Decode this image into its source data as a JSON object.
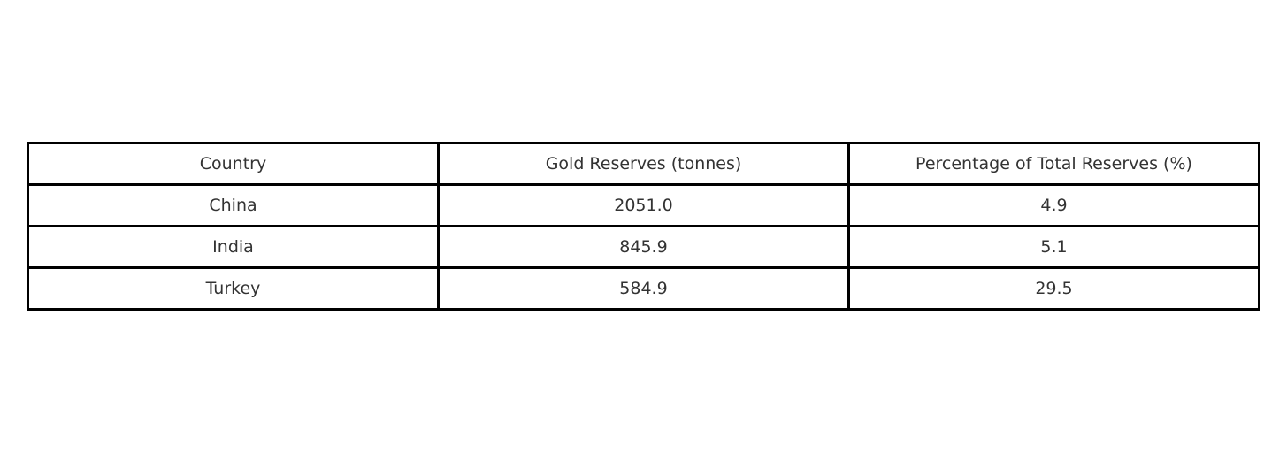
{
  "chart_data": {
    "type": "table",
    "columns": [
      "Country",
      "Gold Reserves (tonnes)",
      "Percentage of Total Reserves (%)"
    ],
    "rows": [
      [
        "China",
        "2051.0",
        "4.9"
      ],
      [
        "India",
        "845.9",
        "5.1"
      ],
      [
        "Turkey",
        "584.9",
        "29.5"
      ]
    ]
  }
}
